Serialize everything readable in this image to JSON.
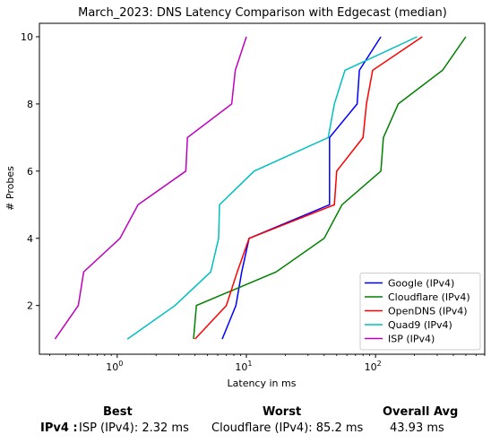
{
  "chart_data": {
    "type": "line",
    "title": "March_2023: DNS Latency Comparison with Edgecast (median)",
    "xlabel": "Latency in ms",
    "ylabel": "# Probes",
    "xscale": "log",
    "xlim": [
      0.25,
      700
    ],
    "ylim": [
      0.55,
      10.4
    ],
    "xticks": [
      {
        "value": 1,
        "base": "10",
        "exp": "0"
      },
      {
        "value": 10,
        "base": "10",
        "exp": "1"
      },
      {
        "value": 100,
        "base": "10",
        "exp": "2"
      }
    ],
    "yticks": [
      2,
      4,
      6,
      8,
      10
    ],
    "grid": false,
    "legend_position": "lower-right",
    "series": [
      {
        "name": "Google (IPv4)",
        "color": "#0000ff",
        "points": [
          [
            6.5,
            1
          ],
          [
            8.3,
            2
          ],
          [
            9.2,
            3
          ],
          [
            10.5,
            4
          ],
          [
            44,
            5
          ],
          [
            44,
            6
          ],
          [
            44,
            7
          ],
          [
            72,
            8
          ],
          [
            75,
            9
          ],
          [
            110,
            10
          ]
        ]
      },
      {
        "name": "Cloudflare (IPv4)",
        "color": "#008000",
        "points": [
          [
            3.9,
            1
          ],
          [
            4.1,
            2
          ],
          [
            17,
            3
          ],
          [
            40,
            4
          ],
          [
            55,
            5
          ],
          [
            110,
            6
          ],
          [
            115,
            7
          ],
          [
            150,
            8
          ],
          [
            330,
            9
          ],
          [
            500,
            10
          ]
        ]
      },
      {
        "name": "OpenDNS (IPv4)",
        "color": "#ff0000",
        "points": [
          [
            4.0,
            1
          ],
          [
            7.0,
            2
          ],
          [
            8.5,
            3
          ],
          [
            10.5,
            4
          ],
          [
            48,
            5
          ],
          [
            50,
            6
          ],
          [
            80,
            7
          ],
          [
            85,
            8
          ],
          [
            95,
            9
          ],
          [
            230,
            10
          ]
        ]
      },
      {
        "name": "Quad9 (IPv4)",
        "color": "#00bfbf",
        "points": [
          [
            1.2,
            1
          ],
          [
            2.8,
            2
          ],
          [
            5.3,
            3
          ],
          [
            6.1,
            4
          ],
          [
            6.2,
            5
          ],
          [
            11.5,
            6
          ],
          [
            43,
            7
          ],
          [
            48,
            8
          ],
          [
            58,
            9
          ],
          [
            210,
            10
          ]
        ]
      },
      {
        "name": "ISP (IPv4)",
        "color": "#bf00bf",
        "points": [
          [
            0.33,
            1
          ],
          [
            0.5,
            2
          ],
          [
            0.55,
            3
          ],
          [
            1.05,
            4
          ],
          [
            1.45,
            5
          ],
          [
            3.4,
            6
          ],
          [
            3.5,
            7
          ],
          [
            7.7,
            8
          ],
          [
            8.2,
            9
          ],
          [
            10,
            10
          ]
        ]
      }
    ]
  },
  "summary": {
    "headers": {
      "best": "Best",
      "worst": "Worst",
      "avg": "Overall Avg"
    },
    "row_label": "IPv4 :",
    "best": "ISP (IPv4): 2.32 ms",
    "worst": "Cloudflare (IPv4): 85.2 ms",
    "avg": "43.93 ms"
  }
}
